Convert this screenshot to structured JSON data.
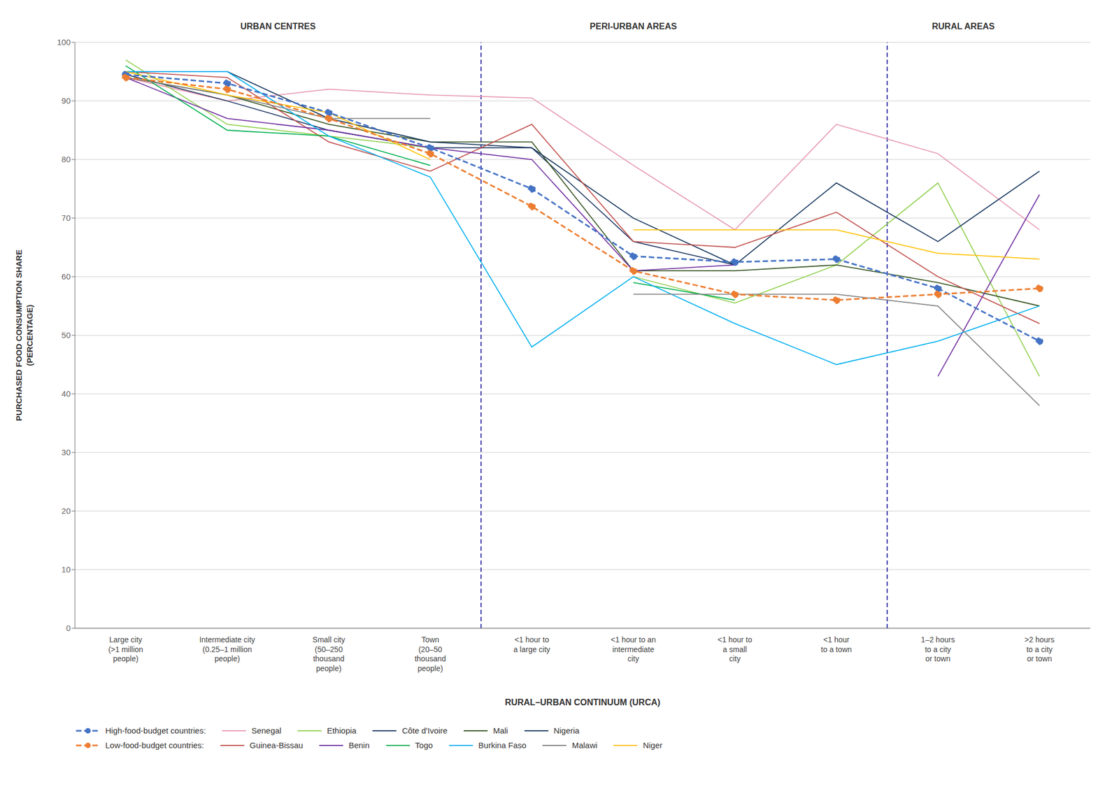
{
  "chart_data": {
    "type": "line",
    "categories": [
      "Large city\n(>1 million\npeople)",
      "Intermediate city\n(0.25–1 million\npeople)",
      "Small city\n(50–250\nthousand\npeople)",
      "Town\n(20–50\nthousand\npeople)",
      "<1 hour to\na large city",
      "<1 hour to an\nintermediate\ncity",
      "<1 hour to\na small\ncity",
      "<1 hour\nto a town",
      "1–2 hours\nto a city\nor town",
      ">2 hours\nto a city\nor town"
    ],
    "series": [
      {
        "name": "High-food-budget countries:",
        "color": "#4472C4",
        "values": [
          94.5,
          93.0,
          88.0,
          82.0,
          75.0,
          63.5,
          62.5,
          63.0,
          58.0,
          49.0
        ],
        "line_style": "dashed",
        "marker": "o"
      },
      {
        "name": "Senegal",
        "color": "#E799B0",
        "values": [
          94.0,
          90.0,
          92.0,
          91.0,
          90.5,
          79.0,
          68.0,
          86.0,
          81.0,
          68.0
        ],
        "line_style": "solid"
      },
      {
        "name": "Ethiopia",
        "color": "#92D050",
        "values": [
          97.0,
          86.0,
          84.0,
          82.0,
          null,
          60.0,
          55.5,
          62.0,
          76.0,
          43.0
        ],
        "line_style": "solid"
      },
      {
        "name": "Côte d'Ivoire",
        "color": "#1F3864",
        "values": [
          94.5,
          90.0,
          85.0,
          82.0,
          82.0,
          66.0,
          62.0,
          null,
          null,
          null
        ],
        "line_style": "solid"
      },
      {
        "name": "Mali",
        "color": "#375623",
        "values": [
          94.0,
          91.0,
          86.0,
          83.0,
          83.0,
          61.0,
          61.0,
          62.0,
          59.0,
          55.0
        ],
        "line_style": "solid"
      },
      {
        "name": "Nigeria",
        "color": "#17375E",
        "values": [
          95.0,
          95.0,
          87.0,
          83.0,
          82.0,
          70.0,
          62.0,
          76.0,
          66.0,
          78.0
        ],
        "line_style": "solid"
      },
      {
        "name": "Low-food-budget countries:",
        "color": "#ED7D31",
        "values": [
          94.0,
          92.0,
          87.0,
          81.0,
          72.0,
          61.0,
          57.0,
          56.0,
          57.0,
          58.0
        ],
        "line_style": "dashed",
        "marker": "o"
      },
      {
        "name": "Guinea-Bissau",
        "color": "#C0504D",
        "values": [
          95.0,
          94.0,
          83.0,
          78.0,
          86.0,
          66.0,
          65.0,
          71.0,
          60.0,
          52.0
        ],
        "line_style": "solid"
      },
      {
        "name": "Benin",
        "color": "#7030A0",
        "values": [
          94.0,
          87.0,
          85.0,
          82.0,
          80.0,
          61.0,
          62.0,
          null,
          43.0,
          74.0
        ],
        "line_style": "solid"
      },
      {
        "name": "Togo",
        "color": "#00B050",
        "values": [
          96.0,
          85.0,
          84.0,
          79.0,
          null,
          59.0,
          56.0,
          null,
          null,
          null
        ],
        "line_style": "solid"
      },
      {
        "name": "Burkina Faso",
        "color": "#00B0F0",
        "values": [
          95.0,
          95.0,
          84.0,
          77.0,
          48.0,
          60.0,
          52.0,
          45.0,
          49.0,
          55.0
        ],
        "line_style": "solid"
      },
      {
        "name": "Malawi",
        "color": "#808080",
        "values": [
          94.0,
          91.0,
          87.0,
          87.0,
          null,
          57.0,
          57.0,
          57.0,
          55.0,
          38.0
        ],
        "line_style": "solid"
      },
      {
        "name": "Niger",
        "color": "#FFC000",
        "values": [
          95.0,
          91.0,
          88.0,
          80.0,
          null,
          68.0,
          68.0,
          68.0,
          64.0,
          63.0
        ],
        "line_style": "solid"
      }
    ],
    "ylim": [
      0,
      100
    ],
    "yticks": [
      0,
      10,
      20,
      30,
      40,
      50,
      60,
      70,
      80,
      90,
      100
    ],
    "ylabel": "PURCHASED FOOD CONSUMPTION SHARE\n(PERCENTAGE)",
    "xlabel": "RURAL–URBAN CONTINUUM (URCA)",
    "annotations": [
      {
        "text": "URBAN CENTRES",
        "x": 1.5
      },
      {
        "text": "PERI-URBAN AREAS",
        "x": 5.0
      },
      {
        "text": "RURAL AREAS",
        "x": 8.25
      }
    ],
    "vlines": [
      {
        "x": 3.5,
        "color": "#3333AA"
      },
      {
        "x": 7.5,
        "color": "#3333AA"
      }
    ],
    "grid": true,
    "legend": "bottom"
  }
}
